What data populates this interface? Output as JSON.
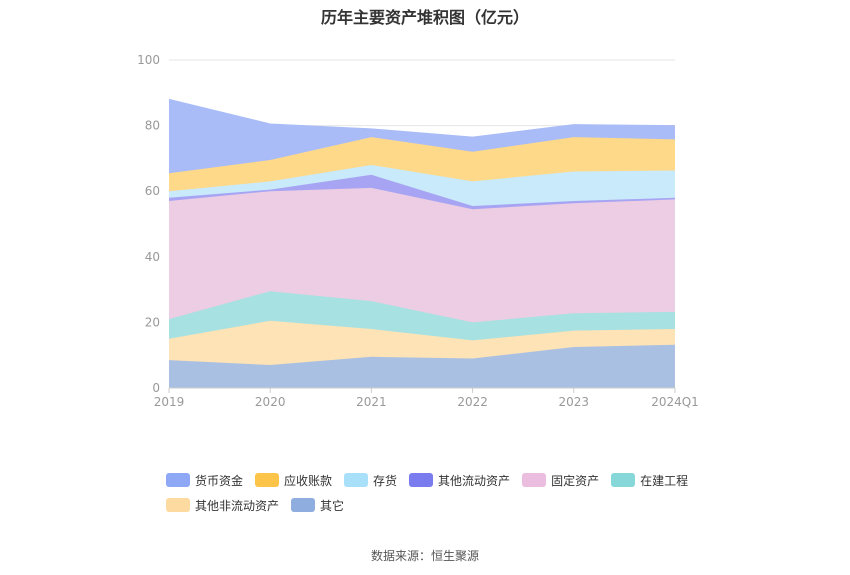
{
  "title": "历年主要资产堆积图（亿元）",
  "source": "数据来源：恒生聚源",
  "chart_data": {
    "type": "area",
    "stacked": true,
    "categories": [
      "2019",
      "2020",
      "2021",
      "2022",
      "2023",
      "2024Q1"
    ],
    "ylim": [
      0,
      100
    ],
    "yticks": [
      "0",
      "20",
      "40",
      "60",
      "80",
      "100"
    ],
    "grid": true,
    "legend_position": "bottom",
    "series": [
      {
        "name": "其它",
        "color": "#aac0e2",
        "values": [
          8.5,
          7,
          9.5,
          9,
          12.5,
          13.2
        ]
      },
      {
        "name": "其他非流动资产",
        "color": "#fde3b6",
        "values": [
          6.5,
          13.5,
          8.5,
          5.5,
          5,
          4.8
        ]
      },
      {
        "name": "在建工程",
        "color": "#a8e1e1",
        "values": [
          6,
          9,
          8.5,
          5.5,
          5.3,
          5.2
        ]
      },
      {
        "name": "固定资产",
        "color": "#eccde3",
        "values": [
          36,
          30.5,
          34.5,
          34.5,
          33.5,
          34.3
        ]
      },
      {
        "name": "其他流动资产",
        "color": "#a7a5f3",
        "values": [
          1,
          0.5,
          4,
          1,
          0.7,
          0.5
        ]
      },
      {
        "name": "存货",
        "color": "#c9eafa",
        "values": [
          2,
          2.5,
          3,
          7.5,
          9,
          8.3
        ]
      },
      {
        "name": "应收账款",
        "color": "#fed98a",
        "values": [
          5.5,
          6.5,
          8.5,
          9,
          10.5,
          9.5
        ]
      },
      {
        "name": "货币资金",
        "color": "#a9bcf7",
        "values": [
          22.5,
          11,
          2.5,
          4.5,
          3.8,
          4.2
        ]
      }
    ]
  },
  "legend": [
    {
      "label": "货币资金",
      "color": "#8fa8f6"
    },
    {
      "label": "应收账款",
      "color": "#fcc54a"
    },
    {
      "label": "存货",
      "color": "#a8e0f9"
    },
    {
      "label": "其他流动资产",
      "color": "#7b7bf0"
    },
    {
      "label": "固定资产",
      "color": "#ebbedf"
    },
    {
      "label": "在建工程",
      "color": "#86d8d8"
    },
    {
      "label": "其他非流动资产",
      "color": "#fddba0"
    },
    {
      "label": "其它",
      "color": "#8fadde"
    }
  ]
}
